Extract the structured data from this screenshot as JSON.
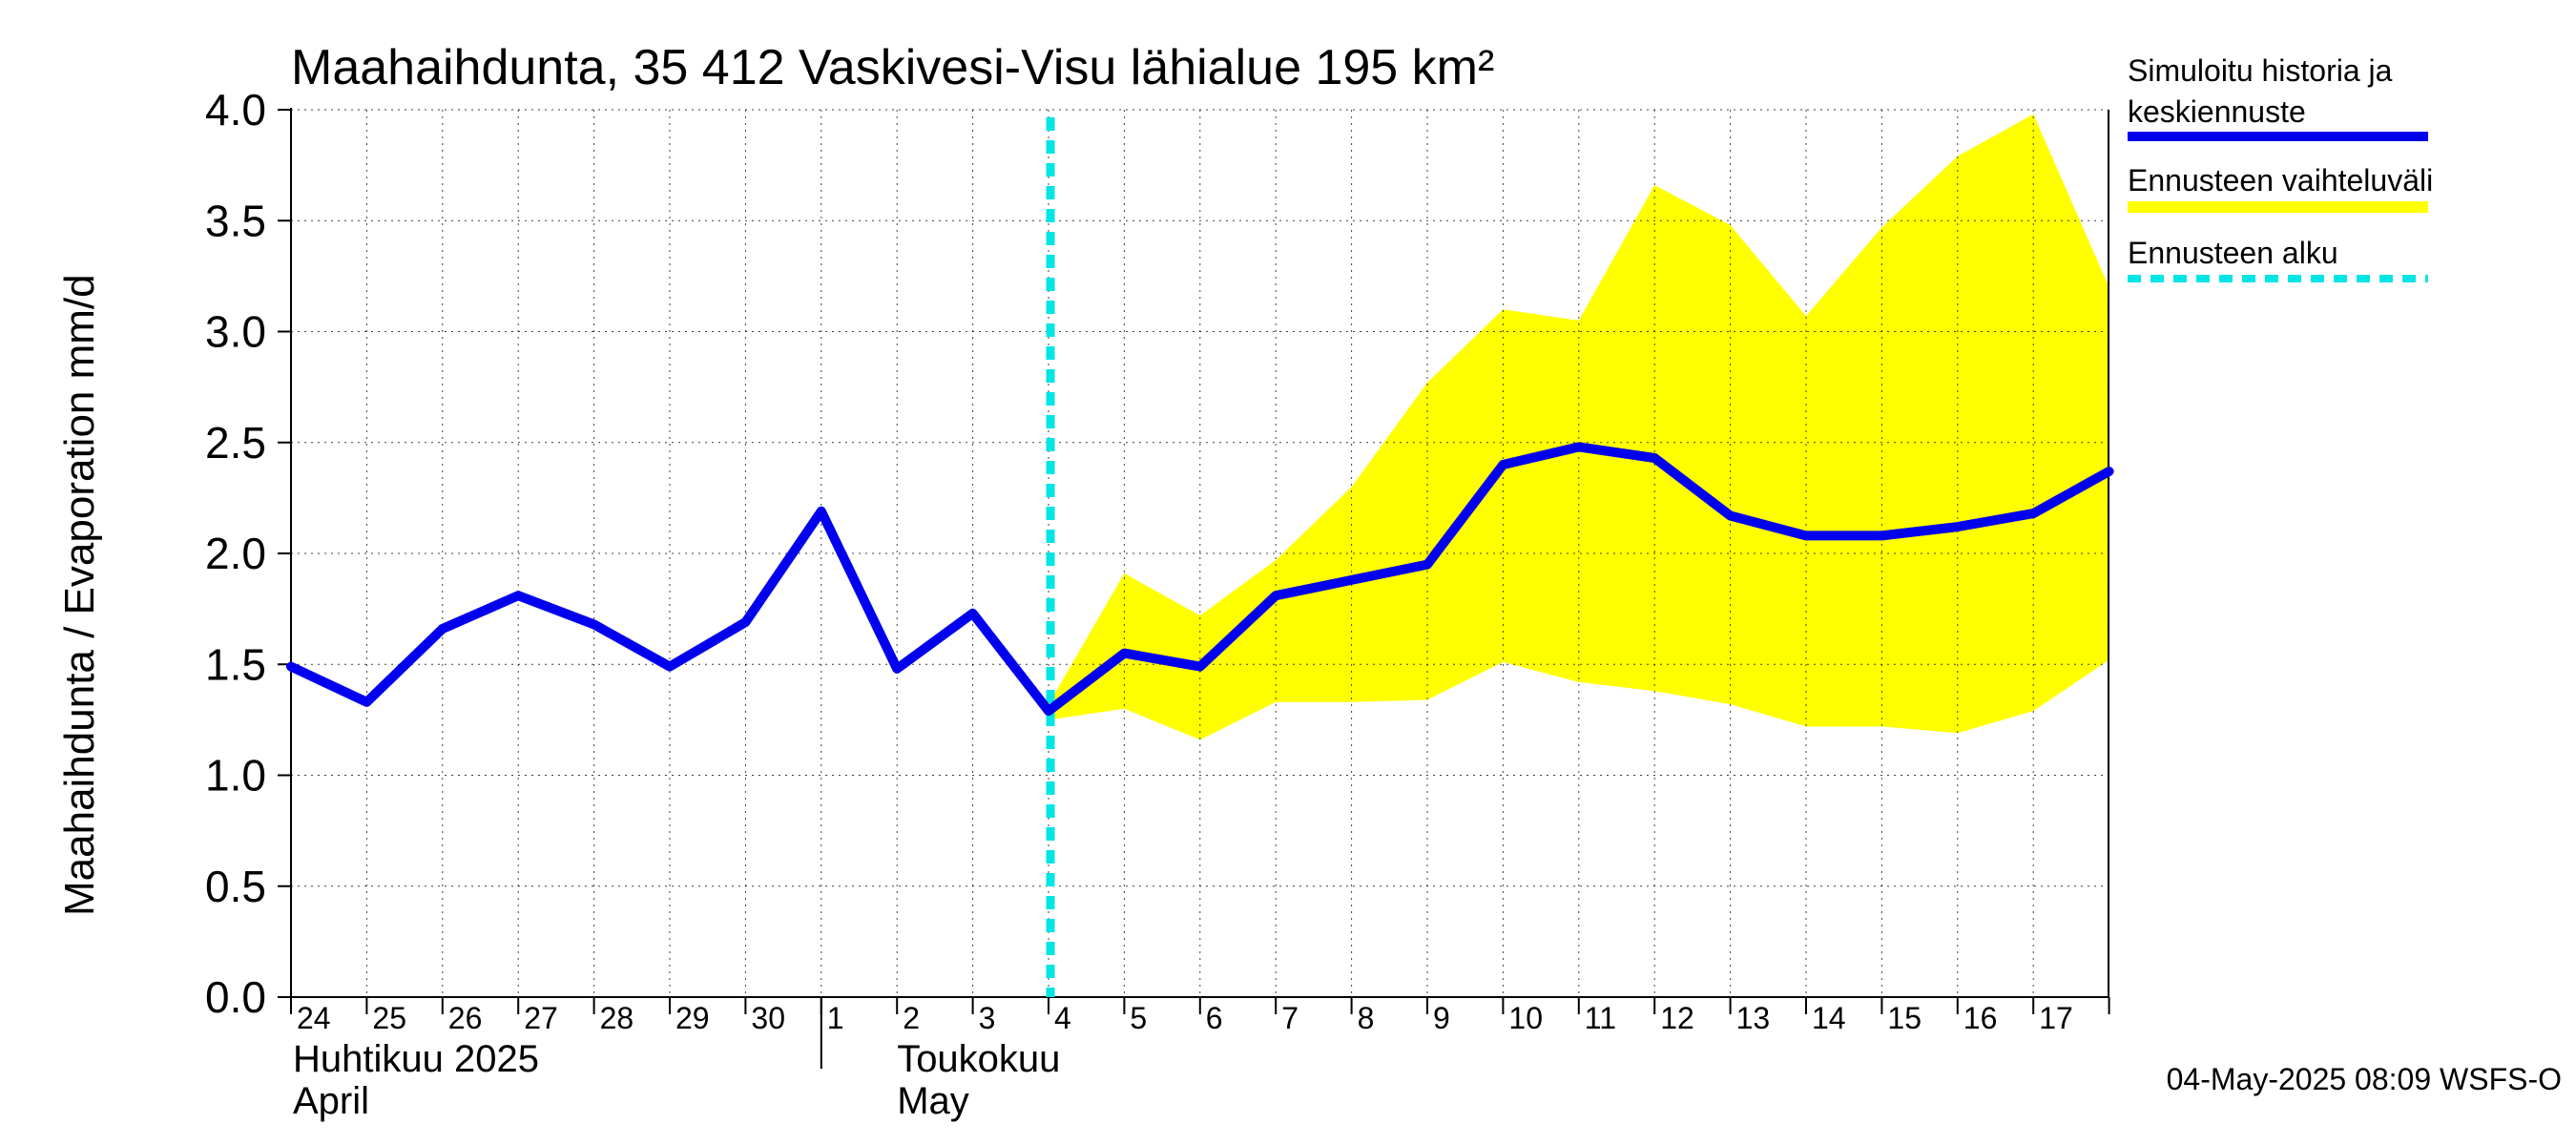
{
  "chart_data": {
    "type": "line",
    "title": "Maahaihdunta, 35 412 Vaskivesi-Visu lähialue 195 km²",
    "ylabel": "Maahaihdunta / Evaporation   mm/d",
    "ylim": [
      0,
      4
    ],
    "yticks": [
      "0.0",
      "0.5",
      "1.0",
      "1.5",
      "2.0",
      "2.5",
      "3.0",
      "3.5",
      "4.0"
    ],
    "grid": true,
    "legend_position": "right",
    "x_day_labels": [
      "24",
      "25",
      "26",
      "27",
      "28",
      "29",
      "30",
      "1",
      "2",
      "3",
      "4",
      "5",
      "6",
      "7",
      "8",
      "9",
      "10",
      "11",
      "12",
      "13",
      "14",
      "15",
      "16",
      "17"
    ],
    "month_labels": [
      {
        "line1": "Huhtikuu  2025",
        "line2": "April"
      },
      {
        "line1": "Toukokuu",
        "line2": "May"
      }
    ],
    "forecast_start": "2025-05-04",
    "series": [
      {
        "name": "Simuloitu historia ja keskiennuste",
        "color": "#0000ee",
        "x": [
          "2025-04-24",
          "2025-04-25",
          "2025-04-26",
          "2025-04-27",
          "2025-04-28",
          "2025-04-29",
          "2025-04-30",
          "2025-05-01",
          "2025-05-02",
          "2025-05-03",
          "2025-05-04",
          "2025-05-05",
          "2025-05-06",
          "2025-05-07",
          "2025-05-08",
          "2025-05-09",
          "2025-05-10",
          "2025-05-11",
          "2025-05-12",
          "2025-05-13",
          "2025-05-14",
          "2025-05-15",
          "2025-05-16",
          "2025-05-17",
          "2025-05-18"
        ],
        "values": [
          1.49,
          1.33,
          1.66,
          1.81,
          1.68,
          1.49,
          1.69,
          2.19,
          1.48,
          1.73,
          1.29,
          1.55,
          1.49,
          1.81,
          1.88,
          1.95,
          2.4,
          2.48,
          2.43,
          2.17,
          2.08,
          2.08,
          2.12,
          2.18,
          2.37
        ]
      },
      {
        "name": "Ennusteen vaihteluväli",
        "color": "#ffff00",
        "x": [
          "2025-05-04",
          "2025-05-05",
          "2025-05-06",
          "2025-05-07",
          "2025-05-08",
          "2025-05-09",
          "2025-05-10",
          "2025-05-11",
          "2025-05-12",
          "2025-05-13",
          "2025-05-14",
          "2025-05-15",
          "2025-05-16",
          "2025-05-17",
          "2025-05-18"
        ],
        "upper": [
          1.32,
          1.91,
          1.72,
          1.97,
          2.3,
          2.77,
          3.1,
          3.05,
          3.66,
          3.48,
          3.07,
          3.47,
          3.79,
          3.98,
          3.2
        ],
        "lower": [
          1.25,
          1.3,
          1.16,
          1.33,
          1.33,
          1.34,
          1.51,
          1.42,
          1.38,
          1.32,
          1.22,
          1.22,
          1.19,
          1.29,
          1.52
        ]
      },
      {
        "name": "Ennusteen alku",
        "color": "#00e5e5"
      }
    ],
    "footer": "04-May-2025 08:09 WSFS-O"
  }
}
